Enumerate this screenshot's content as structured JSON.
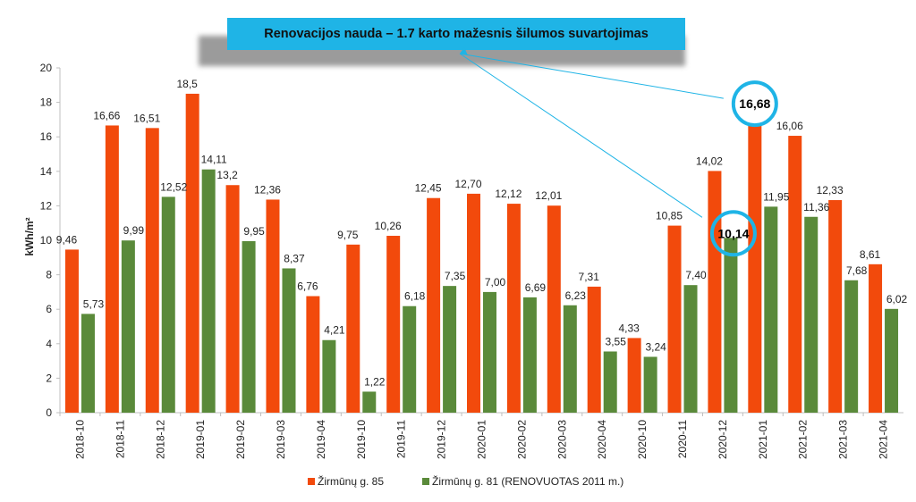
{
  "banner": {
    "text": "Renovacijos nauda – 1.7 karto mažesnis šilumos suvartojimas"
  },
  "colors": {
    "series1": "#f24a0c",
    "series2": "#5a8a3a",
    "highlight": "#1fb4e6",
    "axis": "#bfbfbf"
  },
  "chart_data": {
    "type": "bar",
    "title": "",
    "xlabel": "",
    "ylabel": "kWh/m²",
    "ylim": [
      0,
      20
    ],
    "yticks": [
      "0",
      "2",
      "4",
      "6",
      "8",
      "10",
      "12",
      "14",
      "16",
      "18",
      "20"
    ],
    "grid": false,
    "legend_position": "bottom",
    "categories": [
      "2018-10",
      "2018-11",
      "2018-12",
      "2019-01",
      "2019-02",
      "2019-03",
      "2019-04",
      "2019-10",
      "2019-11",
      "2019-12",
      "2020-01",
      "2020-02",
      "2020-03",
      "2020-04",
      "2020-10",
      "2020-11",
      "2020-12",
      "2021-01",
      "2021-02",
      "2021-03",
      "2021-04"
    ],
    "series": [
      {
        "name": "Žirmūnų g. 85",
        "values": [
          9.46,
          16.66,
          16.51,
          18.5,
          13.2,
          12.36,
          6.76,
          9.75,
          10.26,
          12.45,
          12.7,
          12.12,
          12.01,
          7.31,
          4.33,
          10.85,
          14.02,
          16.68,
          16.06,
          12.33,
          8.61
        ],
        "labels": [
          "9,46",
          "16,66",
          "16,51",
          "18,5",
          "13,2",
          "12,36",
          "6,76",
          "9,75",
          "10,26",
          "12,45",
          "12,70",
          "12,12",
          "12,01",
          "7,31",
          "4,33",
          "10,85",
          "14,02",
          "16,68",
          "16,06",
          "12,33",
          "8,61"
        ]
      },
      {
        "name": "Žirmūnų g. 81 (RENOVUOTAS 2011 m.)",
        "values": [
          5.73,
          9.99,
          12.52,
          14.11,
          9.95,
          8.37,
          4.21,
          1.22,
          6.18,
          7.35,
          7.0,
          6.69,
          6.23,
          3.55,
          3.24,
          7.4,
          10.14,
          11.95,
          11.36,
          7.68,
          6.02
        ],
        "labels": [
          "5,73",
          "9,99",
          "12,52",
          "14,11",
          "9,95",
          "8,37",
          "4,21",
          "1,22",
          "6,18",
          "7,35",
          "7,00",
          "6,69",
          "6,23",
          "3,55",
          "3,24",
          "7,40",
          "10,14",
          "11,95",
          "11,36",
          "7,68",
          "6,02"
        ]
      }
    ],
    "annotations": [
      {
        "series": 0,
        "category": "2021-01",
        "text": "16,68"
      },
      {
        "series": 1,
        "category": "2020-12",
        "text": "10,14"
      }
    ]
  }
}
